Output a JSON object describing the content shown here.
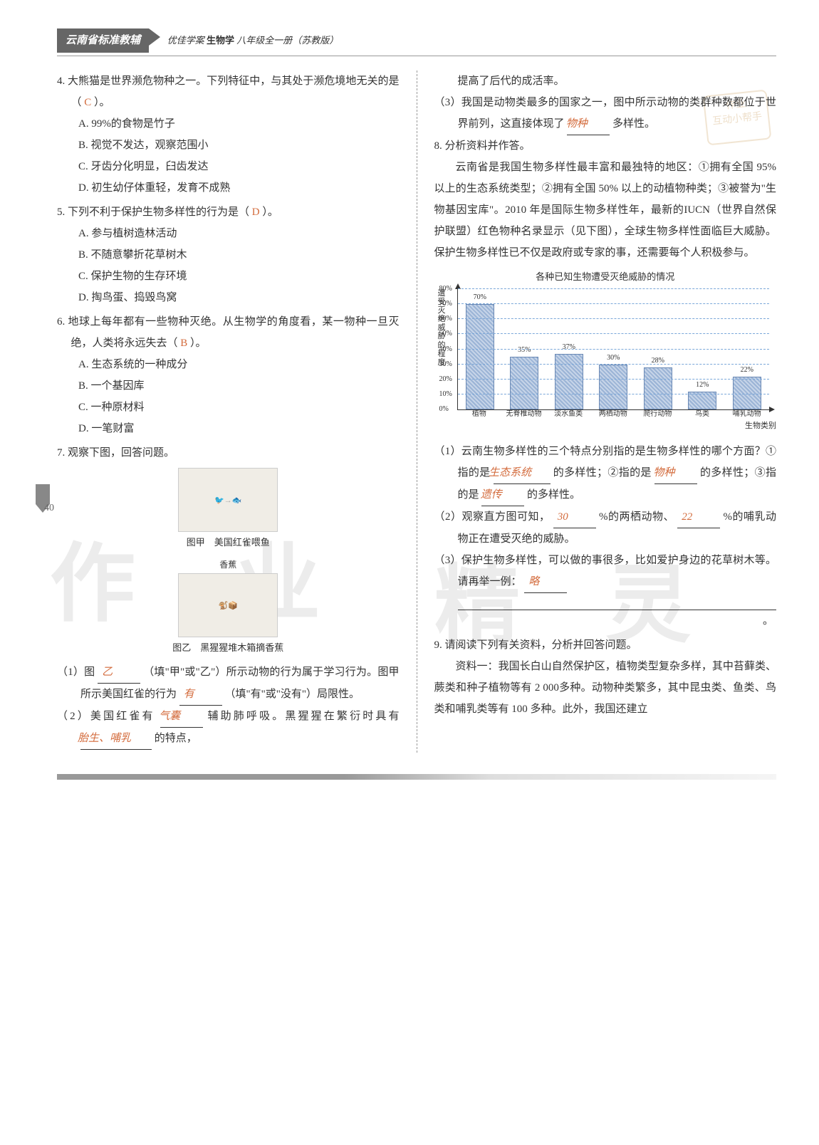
{
  "header": {
    "region": "云南省标准教辅",
    "series": "优佳学案",
    "subject": "生物学",
    "grade": "八年级全一册（苏教版）"
  },
  "page_number": "40",
  "watermark": {
    "c1": "作",
    "c2": "业",
    "c3": "精",
    "c4": "灵"
  },
  "stamp": {
    "line1": "作业",
    "line2": "互动小帮手"
  },
  "left": {
    "q4": {
      "stem": "4. 大熊猫是世界濒危物种之一。下列特征中，与其处于濒危境地无关的是（",
      "ans": "C",
      "tail": "）。",
      "A": "A. 99%的食物是竹子",
      "B": "B. 视觉不发达，观察范围小",
      "C": "C. 牙齿分化明显，臼齿发达",
      "D": "D. 初生幼仔体重轻，发育不成熟"
    },
    "q5": {
      "stem": "5. 下列不利于保护生物多样性的行为是（",
      "ans": "D",
      "tail": "）。",
      "A": "A. 参与植树造林活动",
      "B": "B. 不随意攀折花草树木",
      "C": "C. 保护生物的生存环境",
      "D": "D. 掏鸟蛋、捣毁鸟窝"
    },
    "q6": {
      "stem": "6. 地球上每年都有一些物种灭绝。从生物学的角度看，某一物种一旦灭绝，人类将永远失去（",
      "ans": "B",
      "tail": "）。",
      "A": "A. 生态系统的一种成分",
      "B": "B. 一个基因库",
      "C": "C. 一种原材料",
      "D": "D. 一笔财富"
    },
    "q7": {
      "stem": "7. 观察下图，回答问题。",
      "cap1": "图甲　美国红雀喂鱼",
      "banana": "香蕉",
      "cap2": "图乙　黑猩猩堆木箱摘香蕉",
      "s1a": "（1）图",
      "s1_ans1": "乙",
      "s1b": "（填\"甲\"或\"乙\"）所示动物的行为属于学习行为。图甲所示美国红雀的行为",
      "s1_ans2": "有",
      "s1c": "（填\"有\"或\"没有\"）局限性。",
      "s2a": "（2）美国红雀有",
      "s2_ans1": "气囊",
      "s2b": "辅助肺呼吸。黑猩猩在繁衍时具有",
      "s2_ans2": "胎生、哺乳",
      "s2c": "的特点，"
    }
  },
  "right": {
    "cont": "提高了后代的成活率。",
    "s3a": "（3）我国是动物类最多的国家之一，图中所示动物的类群种数都位于世界前列，这直接体现了",
    "s3_ans": "物种",
    "s3b": "多样性。",
    "q8": {
      "stem": "8. 分析资料并作答。",
      "para": "云南省是我国生物多样性最丰富和最独特的地区：①拥有全国 95% 以上的生态系统类型；②拥有全国 50% 以上的动植物种类；③被誉为\"生物基因宝库\"。2010 年是国际生物多样性年，最新的IUCN（世界自然保护联盟）红色物种名录显示（见下图），全球生物多样性面临巨大威胁。保护生物多样性已不仅是政府或专家的事，还需要每个人积极参与。",
      "s1a": "（1）云南生物多样性的三个特点分别指的是生物多样性的哪个方面？①指的是",
      "s1_ans1": "生态系统",
      "s1b": "的多样性；②指的是",
      "s1_ans2": "物种",
      "s1c": "的多样性；③指的是",
      "s1_ans3": "遗传",
      "s1d": "的多样性。",
      "s2a": "（2）观察直方图可知，",
      "s2_ans1": "30",
      "s2b": "%的两栖动物、",
      "s2_ans2": "22",
      "s2c": "%的哺乳动物正在遭受灭绝的威胁。",
      "s3a": "（3）保护生物多样性，可以做的事很多，比如爱护身边的花草树木等。请再举一例：",
      "s3_ans": "略",
      "s3end": "。"
    },
    "q9": {
      "stem": "9. 请阅读下列有关资料，分析并回答问题。",
      "para": "资料一：我国长白山自然保护区，植物类型复杂多样，其中苔藓类、蕨类和种子植物等有 2 000多种。动物种类繁多，其中昆虫类、鱼类、鸟类和哺乳类等有 100 多种。此外，我国还建立"
    }
  },
  "chart": {
    "title": "各种已知生物遭受灭绝威胁的情况",
    "y_label": "遭受灭绝威胁的程度",
    "x_label": "生物类别",
    "ymax": 80,
    "yticks": [
      "0%",
      "10%",
      "20%",
      "30%",
      "40%",
      "50%",
      "60%",
      "70%",
      "80%"
    ],
    "categories": [
      "植物",
      "无脊椎动物",
      "淡水鱼类",
      "两栖动物",
      "爬行动物",
      "鸟类",
      "哺乳动物"
    ],
    "values": [
      70,
      35,
      37,
      30,
      28,
      12,
      22
    ],
    "bar_color": "#9bb4d6",
    "grid_color": "#7aa7d9",
    "background": "#ffffff"
  }
}
